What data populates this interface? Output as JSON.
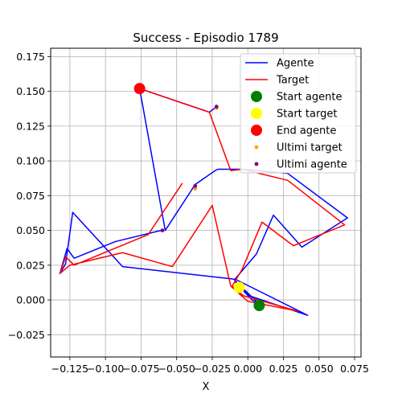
{
  "chart_data": {
    "type": "line",
    "title": "Success - Episodio 1789",
    "xlabel": "X",
    "ylabel": "",
    "xlim": [
      -0.1385,
      0.0795
    ],
    "ylim": [
      -0.041,
      0.181
    ],
    "grid": true,
    "legend_position": "top-right",
    "x_ticks": [
      -0.125,
      -0.1,
      -0.075,
      -0.05,
      -0.025,
      0.0,
      0.025,
      0.05,
      0.075
    ],
    "x_tick_labels": [
      "−0.125",
      "−0.100",
      "−0.075",
      "−0.050",
      "−0.025",
      "0.000",
      "0.025",
      "0.050",
      "0.075"
    ],
    "y_ticks": [
      -0.025,
      0.0,
      0.025,
      0.05,
      0.075,
      0.1,
      0.125,
      0.15,
      0.175
    ],
    "y_tick_labels": [
      "−0.025",
      "0.000",
      "0.025",
      "0.050",
      "0.075",
      "0.100",
      "0.125",
      "0.150",
      "0.175"
    ],
    "series": [
      {
        "name": "Agente",
        "kind": "line",
        "color": "#0000ff",
        "x": [
          -0.022,
          -0.027,
          -0.076,
          -0.058,
          -0.037,
          -0.023,
          -0.021,
          -0.004,
          0.028,
          0.07,
          0.038,
          0.018,
          0.006,
          -0.009,
          0.042,
          0.001,
          -0.009,
          0.003,
          0.008,
          -0.01,
          -0.088,
          -0.123,
          -0.128,
          -0.132,
          -0.127,
          -0.122,
          -0.093,
          -0.061
        ],
        "y": [
          0.139,
          0.135,
          0.152,
          0.05,
          0.083,
          0.093,
          0.094,
          0.094,
          0.091,
          0.059,
          0.038,
          0.061,
          0.033,
          0.015,
          -0.011,
          0.003,
          0.013,
          0.0,
          -0.003,
          0.015,
          0.024,
          0.063,
          0.026,
          0.019,
          0.037,
          0.03,
          0.042,
          0.05
        ]
      },
      {
        "name": "Target",
        "kind": "line",
        "color": "#ff0000",
        "x": [
          -0.076,
          -0.027,
          -0.012,
          -0.004,
          0.028,
          0.068,
          0.032,
          0.01,
          -0.004,
          -0.011,
          -0.003,
          0.035,
          0.0,
          -0.012,
          -0.025,
          -0.053,
          -0.088,
          -0.125,
          -0.132,
          -0.128,
          -0.122,
          -0.07,
          -0.046
        ],
        "y": [
          0.152,
          0.135,
          0.093,
          0.094,
          0.086,
          0.054,
          0.039,
          0.056,
          0.022,
          0.01,
          0.003,
          -0.008,
          -0.001,
          0.01,
          0.068,
          0.024,
          0.034,
          0.025,
          0.019,
          0.031,
          0.025,
          0.047,
          0.084
        ]
      }
    ],
    "markers": [
      {
        "name": "Start agente",
        "color": "#008000",
        "size": "large",
        "points": [
          [
            0.008,
            -0.004
          ]
        ]
      },
      {
        "name": "Start target",
        "color": "#ffff00",
        "size": "large",
        "points": [
          [
            -0.006,
            0.009
          ]
        ]
      },
      {
        "name": "End agente",
        "color": "#ff0000",
        "size": "large",
        "points": [
          [
            -0.076,
            0.152
          ]
        ]
      },
      {
        "name": "Ultimi target",
        "color": "#ffa500",
        "size": "small",
        "points": [
          [
            -0.037,
            0.08
          ],
          [
            -0.022,
            0.138
          ]
        ]
      },
      {
        "name": "Ultimi agente",
        "color": "#800080",
        "size": "small",
        "points": [
          [
            -0.06,
            0.05
          ],
          [
            -0.037,
            0.082
          ],
          [
            -0.022,
            0.139
          ]
        ]
      }
    ],
    "legend": [
      "Agente",
      "Target",
      "Start agente",
      "Start target",
      "End agente",
      "Ultimi target",
      "Ultimi agente"
    ]
  }
}
